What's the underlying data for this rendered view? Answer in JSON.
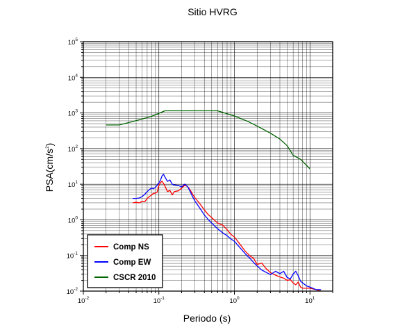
{
  "chart_data": {
    "type": "line",
    "title": "Sitio HVRG",
    "xlabel": "Periodo (s)",
    "ylabel": "PSA(cm/s²)",
    "ylabel_base": "PSA(cm/s",
    "ylabel_sup": "2",
    "ylabel_tail": ")",
    "x_scale": "log",
    "y_scale": "log",
    "xlim": [
      0.01,
      20
    ],
    "ylim": [
      0.01,
      100000
    ],
    "grid": true,
    "legend_position": "bottom-left",
    "x_ticks": [
      {
        "base": "10",
        "exp": "-2"
      },
      {
        "base": "10",
        "exp": "-1"
      },
      {
        "base": "10",
        "exp": "0"
      },
      {
        "base": "10",
        "exp": "1"
      }
    ],
    "y_ticks": [
      {
        "base": "10",
        "exp": "-2"
      },
      {
        "base": "10",
        "exp": "-1"
      },
      {
        "base": "10",
        "exp": "0"
      },
      {
        "base": "10",
        "exp": "1"
      },
      {
        "base": "10",
        "exp": "2"
      },
      {
        "base": "10",
        "exp": "3"
      },
      {
        "base": "10",
        "exp": "4"
      },
      {
        "base": "10",
        "exp": "5"
      }
    ],
    "series": [
      {
        "name": "Comp NS",
        "color": "#ff0000",
        "x": [
          0.045,
          0.05,
          0.055,
          0.06,
          0.065,
          0.07,
          0.075,
          0.08,
          0.085,
          0.09,
          0.095,
          0.1,
          0.105,
          0.11,
          0.12,
          0.13,
          0.14,
          0.15,
          0.16,
          0.18,
          0.2,
          0.22,
          0.24,
          0.26,
          0.28,
          0.3,
          0.35,
          0.4,
          0.45,
          0.5,
          0.6,
          0.7,
          0.8,
          0.9,
          1.0,
          1.2,
          1.4,
          1.6,
          1.8,
          2.0,
          2.3,
          2.6,
          3.0,
          3.5,
          4.0,
          4.5,
          5.0,
          5.5,
          6.0,
          6.5,
          7.0,
          7.5,
          8.0,
          9.0,
          10.0,
          12.0,
          14.0
        ],
        "y": [
          3.0,
          3.1,
          3.0,
          3.3,
          3.2,
          4.0,
          4.5,
          5.0,
          5.6,
          5.6,
          6.0,
          9.3,
          11.0,
          12.2,
          9.0,
          6.2,
          6.7,
          5.0,
          6.2,
          6.5,
          7.7,
          9.4,
          8.6,
          6.8,
          5.2,
          4.2,
          2.8,
          1.9,
          1.4,
          1.15,
          0.81,
          0.71,
          0.53,
          0.39,
          0.33,
          0.2,
          0.13,
          0.098,
          0.083,
          0.056,
          0.061,
          0.044,
          0.033,
          0.028,
          0.025,
          0.023,
          0.02,
          0.021,
          0.017,
          0.015,
          0.018,
          0.013,
          0.012,
          0.012,
          0.012,
          0.011,
          0.01
        ]
      },
      {
        "name": "Comp EW",
        "color": "#0000ff",
        "x": [
          0.045,
          0.05,
          0.055,
          0.06,
          0.065,
          0.07,
          0.075,
          0.08,
          0.085,
          0.09,
          0.095,
          0.1,
          0.105,
          0.11,
          0.115,
          0.12,
          0.13,
          0.14,
          0.15,
          0.16,
          0.18,
          0.2,
          0.22,
          0.24,
          0.26,
          0.28,
          0.3,
          0.35,
          0.4,
          0.45,
          0.5,
          0.6,
          0.7,
          0.8,
          0.9,
          1.0,
          1.2,
          1.4,
          1.6,
          1.8,
          2.0,
          2.3,
          2.6,
          3.0,
          3.5,
          4.0,
          4.5,
          5.0,
          5.5,
          6.0,
          6.5,
          7.0,
          7.5,
          8.0,
          9.0,
          10.0,
          12.0,
          14.0
        ],
        "y": [
          4.0,
          4.0,
          4.1,
          4.5,
          5.2,
          6.2,
          7.1,
          7.8,
          7.5,
          8.2,
          9.4,
          11.0,
          13.0,
          17.0,
          19.0,
          16.0,
          12.0,
          13.2,
          10.0,
          9.6,
          9.3,
          8.4,
          10.0,
          8.6,
          6.2,
          4.4,
          3.4,
          2.1,
          1.38,
          1.02,
          0.81,
          0.56,
          0.43,
          0.36,
          0.29,
          0.25,
          0.16,
          0.11,
          0.084,
          0.063,
          0.051,
          0.039,
          0.034,
          0.029,
          0.036,
          0.031,
          0.036,
          0.024,
          0.022,
          0.03,
          0.036,
          0.027,
          0.019,
          0.017,
          0.014,
          0.013,
          0.011,
          0.011
        ]
      },
      {
        "name": "CSCR 2010",
        "color": "#006400",
        "x": [
          0.02,
          0.03,
          0.05,
          0.08,
          0.12,
          0.2,
          0.4,
          0.6,
          1.0,
          1.5,
          2.0,
          3.0,
          4.0,
          5.0,
          6.0,
          7.5,
          10.0
        ],
        "y": [
          460,
          460,
          610,
          800,
          1150,
          1150,
          1150,
          1150,
          820,
          580,
          430,
          270,
          185,
          120,
          65,
          50,
          27
        ]
      }
    ]
  }
}
